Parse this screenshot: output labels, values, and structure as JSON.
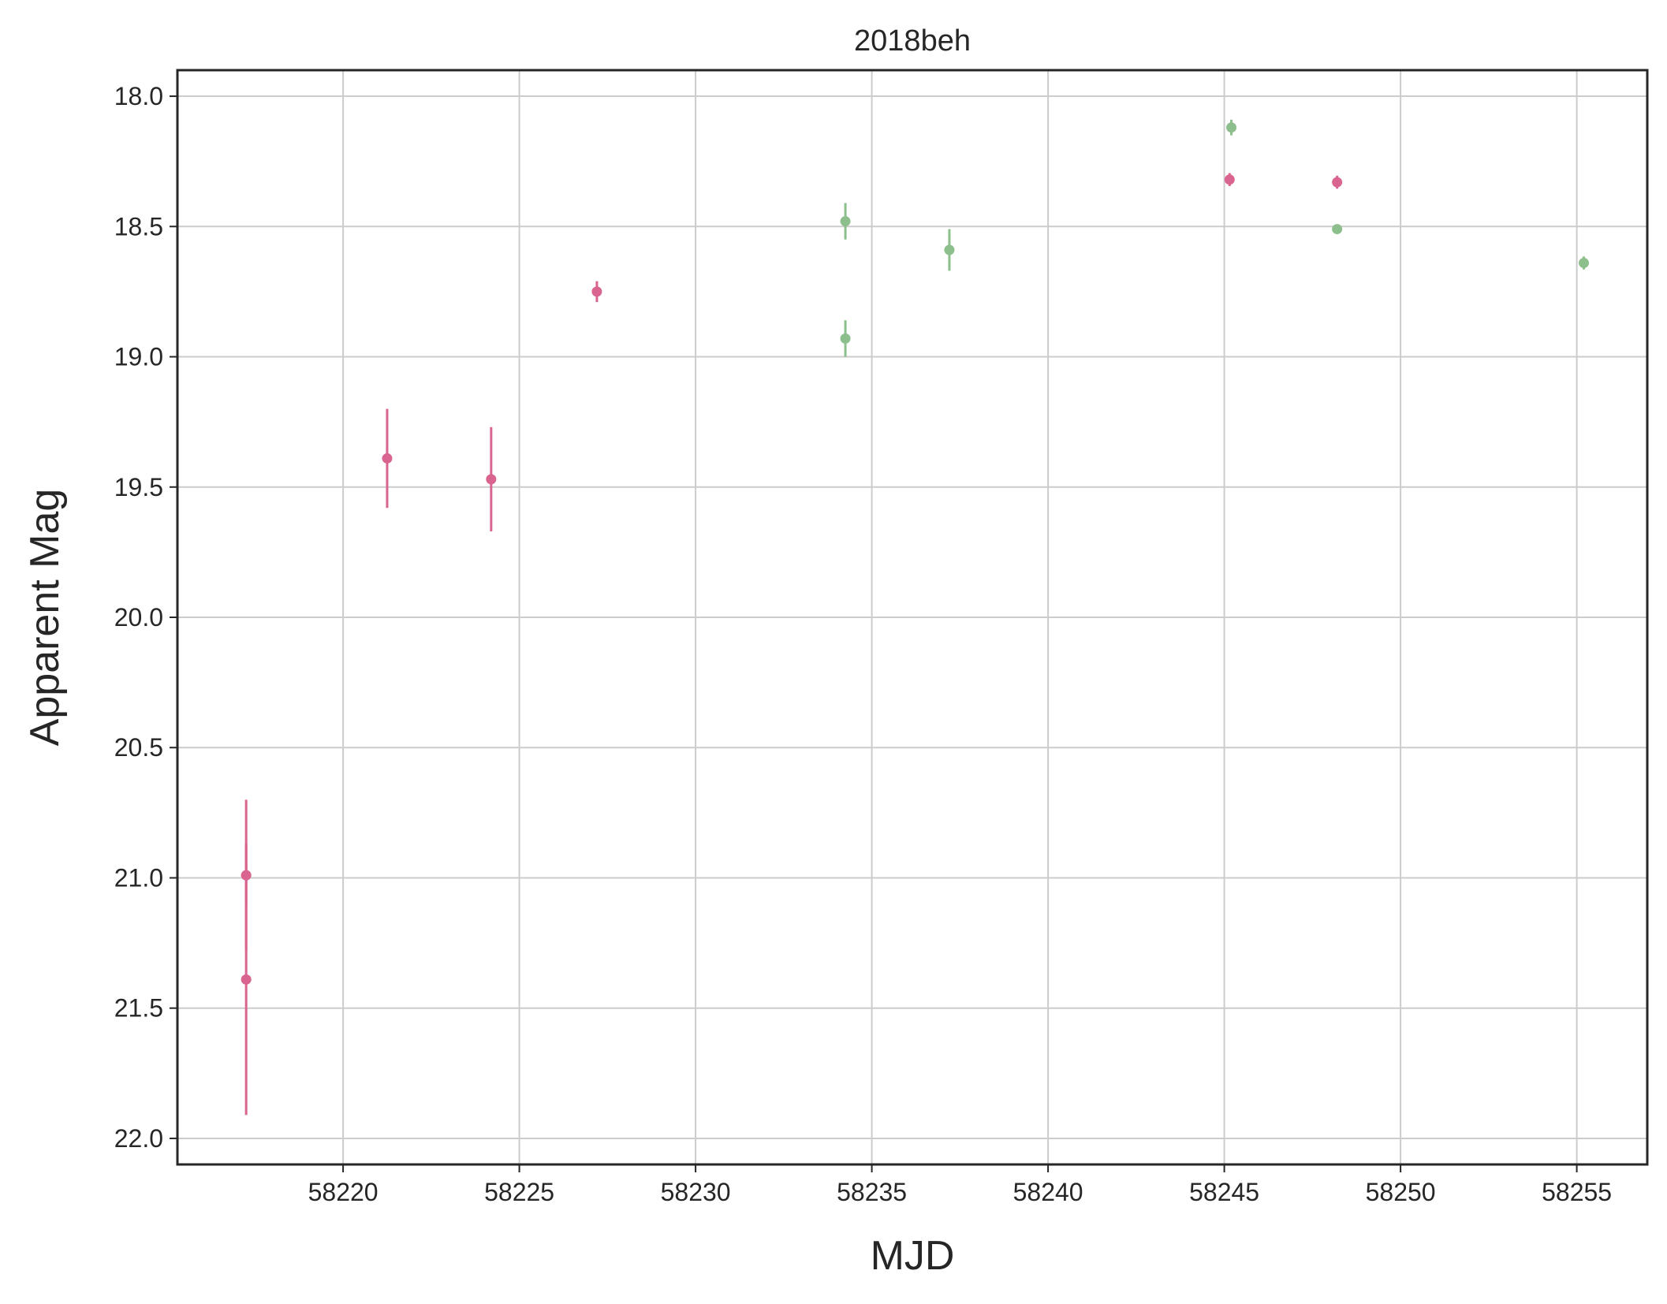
{
  "chart_data": {
    "type": "scatter",
    "title": "2018beh",
    "xlabel": "MJD",
    "ylabel": "Apparent Mag",
    "xlim": [
      58215.3,
      58257.0
    ],
    "ylim": [
      22.1,
      17.9
    ],
    "y_inverted": true,
    "grid": true,
    "x_ticks": [
      58220,
      58225,
      58230,
      58235,
      58240,
      58245,
      58250,
      58255
    ],
    "y_ticks": [
      18.0,
      18.5,
      19.0,
      19.5,
      20.0,
      20.5,
      21.0,
      21.5,
      22.0
    ],
    "series": [
      {
        "color": "#d9648f",
        "points": [
          {
            "x": 58217.25,
            "y": 20.99,
            "err": 0.12
          },
          {
            "x": 58217.25,
            "y": 21.39,
            "err": 0.52
          },
          {
            "x": 58217.25,
            "y": 20.99,
            "err": 0.29
          },
          {
            "x": 58221.25,
            "y": 19.39,
            "err": 0.19
          },
          {
            "x": 58224.2,
            "y": 19.47,
            "err": 0.2
          },
          {
            "x": 58227.2,
            "y": 18.75,
            "err": 0.04
          },
          {
            "x": 58245.15,
            "y": 18.32,
            "err": 0.025
          },
          {
            "x": 58248.2,
            "y": 18.33,
            "err": 0.025
          }
        ]
      },
      {
        "color": "#8cbf8c",
        "points": [
          {
            "x": 58234.25,
            "y": 18.48,
            "err": 0.07
          },
          {
            "x": 58234.25,
            "y": 18.93,
            "err": 0.07
          },
          {
            "x": 58237.2,
            "y": 18.59,
            "err": 0.08
          },
          {
            "x": 58245.2,
            "y": 18.12,
            "err": 0.03
          },
          {
            "x": 58248.2,
            "y": 18.51,
            "err": 0.015
          },
          {
            "x": 58255.2,
            "y": 18.64,
            "err": 0.025
          }
        ]
      }
    ]
  }
}
